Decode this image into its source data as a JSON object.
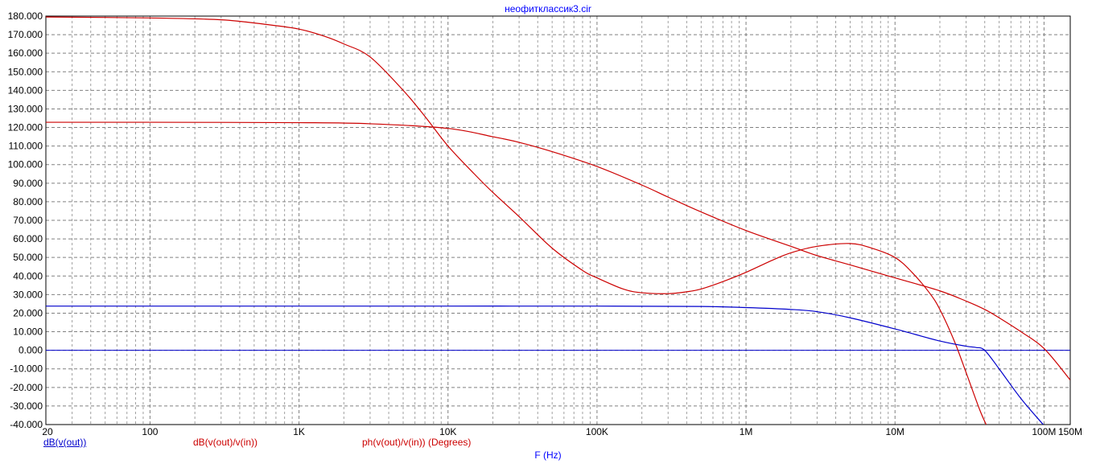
{
  "chart_data": {
    "type": "line",
    "title": "неофитклассик3.cir",
    "xlabel": "F (Hz)",
    "ylabel": "",
    "xscale": "log",
    "xlim": [
      20,
      150000000
    ],
    "ylim": [
      -40,
      180
    ],
    "grid": true,
    "colors": {
      "title": "#0000ff",
      "axis": "#000000",
      "grid": "#808080",
      "red": "#cc0000",
      "blue": "#0000cc",
      "zero": "#0000cc"
    },
    "y_ticks": [
      "180.000",
      "170.000",
      "160.000",
      "150.000",
      "140.000",
      "130.000",
      "120.000",
      "110.000",
      "100.000",
      "90.000",
      "80.000",
      "70.000",
      "60.000",
      "50.000",
      "40.000",
      "30.000",
      "20.000",
      "10.000",
      "0.000",
      "-10.000",
      "-20.000",
      "-30.000",
      "-40.000"
    ],
    "x_ticks": [
      {
        "value": 20,
        "label": "20"
      },
      {
        "value": 100,
        "label": "100"
      },
      {
        "value": 1000,
        "label": "1K"
      },
      {
        "value": 10000,
        "label": "10K"
      },
      {
        "value": 100000,
        "label": "100K"
      },
      {
        "value": 1000000,
        "label": "1M"
      },
      {
        "value": 10000000,
        "label": "10M"
      },
      {
        "value": 100000000,
        "label": "100M"
      },
      {
        "value": 150000000,
        "label": "150M"
      }
    ],
    "legend": [
      {
        "label": "dB(v(out))",
        "color": "#0000cc",
        "underline": true
      },
      {
        "label": "dB(v(out)/v(in))",
        "color": "#cc0000",
        "underline": false
      },
      {
        "label": "ph(v(out)/v(in)) (Degrees)",
        "color": "#cc0000",
        "underline": false
      }
    ],
    "series": [
      {
        "color": "#cc0000",
        "x": [
          20,
          100,
          300,
          600,
          1000,
          1500,
          2000,
          3000,
          5000,
          7000,
          10000,
          15000,
          20000,
          30000,
          50000,
          80000,
          100000,
          150000,
          200000,
          300000,
          400000,
          500000,
          700000,
          1000000,
          1500000,
          2000000,
          3000000,
          5000000,
          7000000,
          10000000,
          13000000,
          17000000,
          20000000,
          25000000,
          30000000,
          37000000,
          42000000
        ],
        "y": [
          179.5,
          179.0,
          178.0,
          175.5,
          173.0,
          169.0,
          165.0,
          158.0,
          140.0,
          126.0,
          110.0,
          95.0,
          85.0,
          72.0,
          55.0,
          43.0,
          39.0,
          33.0,
          31.0,
          30.5,
          31.5,
          33.0,
          37.0,
          42.0,
          48.5,
          52.5,
          56.0,
          57.5,
          55.0,
          50.0,
          42.0,
          31.0,
          22.0,
          5.0,
          -12.0,
          -32.0,
          -42.0
        ]
      },
      {
        "color": "#cc0000",
        "x": [
          20,
          100,
          1000,
          3000,
          10000,
          20000,
          30000,
          50000,
          100000,
          200000,
          300000,
          500000,
          1000000,
          2000000,
          3000000,
          5000000,
          10000000,
          20000000,
          30000000,
          40000000,
          50000000,
          70000000,
          100000000,
          150000000
        ],
        "y": [
          122.8,
          122.8,
          122.6,
          122.0,
          119.5,
          115.0,
          112.0,
          107.0,
          99.0,
          89.0,
          82.5,
          74.5,
          64.5,
          56.0,
          51.0,
          46.0,
          39.0,
          32.0,
          26.5,
          22.0,
          17.5,
          10.0,
          1.0,
          -16.0
        ]
      },
      {
        "color": "#0000cc",
        "x": [
          20,
          1000,
          10000,
          100000,
          500000,
          1000000,
          2000000,
          3000000,
          5000000,
          10000000,
          20000000,
          30000000,
          35000000,
          40000000,
          50000000,
          70000000,
          100000000
        ],
        "y": [
          23.8,
          23.8,
          23.8,
          23.8,
          23.6,
          23.0,
          22.0,
          20.8,
          17.5,
          11.5,
          5.0,
          2.2,
          1.5,
          0.0,
          -10.0,
          -26.0,
          -40.5
        ]
      }
    ]
  }
}
